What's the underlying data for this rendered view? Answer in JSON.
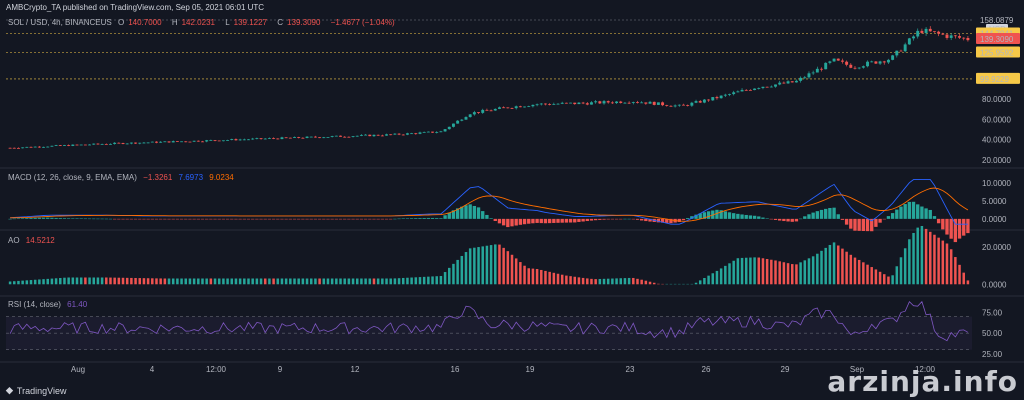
{
  "header": {
    "published": "AMBCrypto_TA published on TradingView.com, Sep 05, 2021 06:01 UTC"
  },
  "price_legend": {
    "symbol": "SOL / USD, 4h, BINANCEUS",
    "o_label": "O",
    "o": "140.7000",
    "h_label": "H",
    "h": "142.0231",
    "l_label": "L",
    "l": "139.1227",
    "c_label": "C",
    "c": "139.3090",
    "change": "−1.4677 (−1.04%)"
  },
  "macd_legend": {
    "name": "MACD (12, 26, close, 9, EMA, EMA)",
    "hist": "−1.3261",
    "macd": "7.6973",
    "signal": "9.0234"
  },
  "ao_legend": {
    "name": "AO",
    "value": "14.5212"
  },
  "rsi_legend": {
    "name": "RSI (14, close)",
    "value": "61.40"
  },
  "price_axis": {
    "ticks": [
      "20.0000",
      "40.0000",
      "60.0000",
      "80.0000"
    ],
    "label_top": "158.0879",
    "currency": "USD",
    "label_a": "144.7041",
    "label_b": "139.3090",
    "label_c": "125.9592",
    "label_d": "99.9229"
  },
  "macd_axis": {
    "ticks": [
      "10.0000",
      "5.0000",
      "0.0000"
    ]
  },
  "ao_axis": {
    "ticks": [
      "20.0000",
      "0.0000"
    ]
  },
  "rsi_axis": {
    "ticks": [
      "75.00",
      "50.00",
      "25.00"
    ]
  },
  "time_axis": [
    "Aug",
    "4",
    "12:00",
    "9",
    "12",
    "16",
    "19",
    "23",
    "26",
    "29",
    "Sep",
    "12:00"
  ],
  "footer": {
    "brand": "TradingView"
  },
  "watermark": "arzinja.info",
  "colors": {
    "up": "#26a69a",
    "down": "#ef5350",
    "macd": "#2962ff",
    "signal": "#ff6d00",
    "rsi": "#7e57c2",
    "ao_up": "#26a69a",
    "ao_down": "#ef5350",
    "label_a_bg": "#f7c948",
    "label_b_bg": "#ef5350",
    "label_c_bg": "#f7c948",
    "label_d_bg": "#f7c948"
  },
  "chart_data": {
    "type": "candlestick",
    "symbol": "SOL / USD",
    "interval": "4h",
    "price_range": [
      20,
      158
    ],
    "price_trend_keypoints": [
      {
        "t": 0.0,
        "price": 32
      },
      {
        "t": 0.1,
        "price": 36
      },
      {
        "t": 0.2,
        "price": 39
      },
      {
        "t": 0.3,
        "price": 42
      },
      {
        "t": 0.4,
        "price": 45
      },
      {
        "t": 0.45,
        "price": 48
      },
      {
        "t": 0.48,
        "price": 66
      },
      {
        "t": 0.52,
        "price": 72
      },
      {
        "t": 0.55,
        "price": 75
      },
      {
        "t": 0.6,
        "price": 76
      },
      {
        "t": 0.65,
        "price": 78
      },
      {
        "t": 0.7,
        "price": 73
      },
      {
        "t": 0.74,
        "price": 82
      },
      {
        "t": 0.78,
        "price": 92
      },
      {
        "t": 0.82,
        "price": 97
      },
      {
        "t": 0.86,
        "price": 118
      },
      {
        "t": 0.88,
        "price": 112
      },
      {
        "t": 0.92,
        "price": 120
      },
      {
        "t": 0.95,
        "price": 148
      },
      {
        "t": 0.98,
        "price": 142
      },
      {
        "t": 1.0,
        "price": 139.3
      }
    ],
    "horizontal_levels": [
      144.7041,
      125.9592,
      99.9229
    ],
    "macd_range": [
      -2,
      12
    ],
    "ao_range": [
      -2,
      26
    ],
    "rsi_range": [
      20,
      90
    ],
    "rsi_bands": [
      70,
      50,
      30
    ]
  }
}
